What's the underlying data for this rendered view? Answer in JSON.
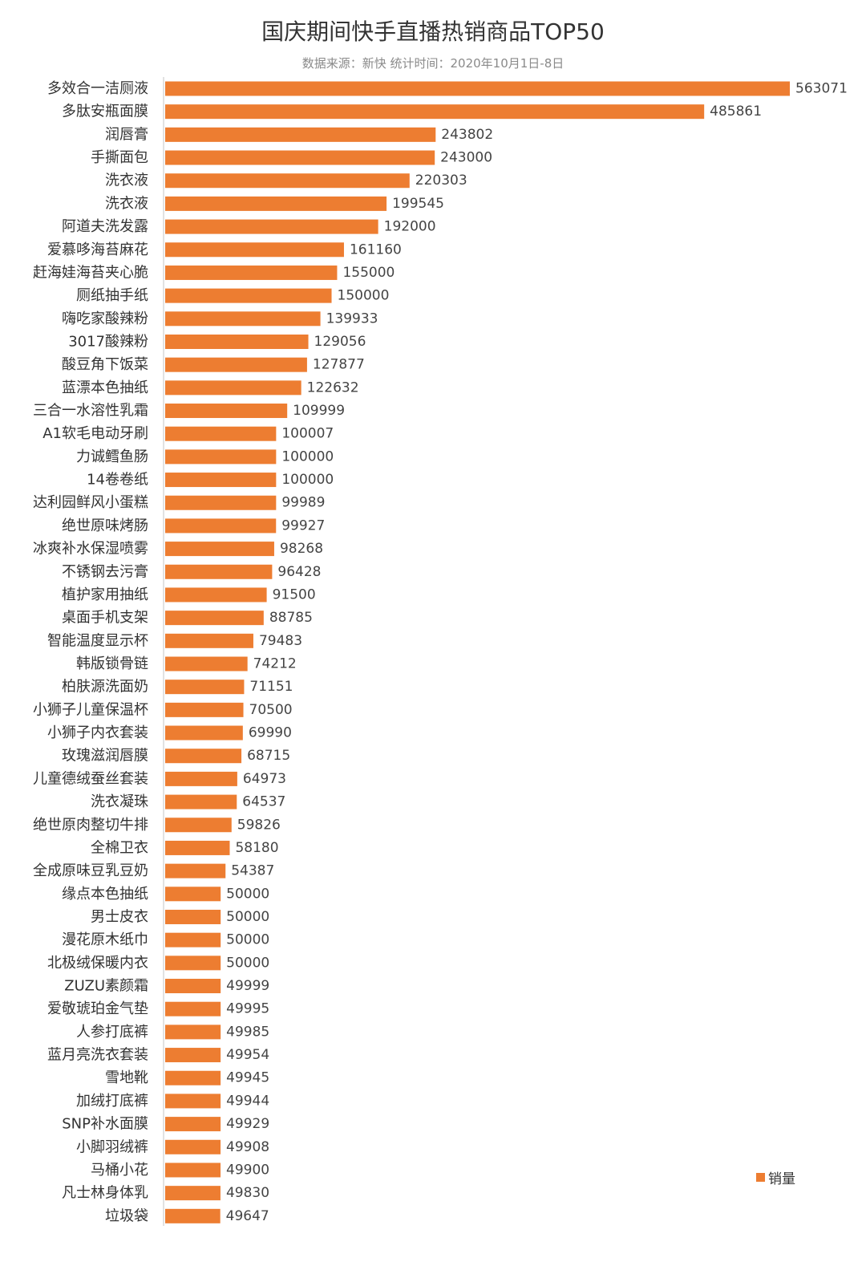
{
  "chart_data": {
    "type": "bar",
    "orientation": "horizontal",
    "title": "国庆期间快手直播热销商品TOP50",
    "subtitle": "数据来源：新快    统计时间：2020年10月1日-8日",
    "xlabel": "",
    "ylabel": "",
    "grid": false,
    "legend": "right-bottom",
    "xlim": [
      0,
      563071
    ],
    "colors": {
      "bar": "#ED7D31",
      "axis": "#d9d9d9"
    },
    "categories": [
      "多效合一洁厕液",
      "多肽安瓶面膜",
      "润唇膏",
      "手撕面包",
      "洗衣液",
      "洗衣液",
      "阿道夫洗发露",
      "爱慕哆海苔麻花",
      "赶海娃海苔夹心脆",
      "厕纸抽手纸",
      "嗨吃家酸辣粉",
      "3017酸辣粉",
      "酸豆角下饭菜",
      "蓝漂本色抽纸",
      "三合一水溶性乳霜",
      "A1软毛电动牙刷",
      "力诚鳕鱼肠",
      "14卷卷纸",
      "达利园鲜风小蛋糕",
      "绝世原味烤肠",
      "冰爽补水保湿喷雾",
      "不锈钢去污膏",
      "植护家用抽纸",
      "桌面手机支架",
      "智能温度显示杯",
      "韩版锁骨链",
      "柏肤源洗面奶",
      "小狮子儿童保温杯",
      "小狮子内衣套装",
      "玫瑰滋润唇膜",
      "儿童德绒蚕丝套装",
      "洗衣凝珠",
      "绝世原肉整切牛排",
      "全棉卫衣",
      "全成原味豆乳豆奶",
      "缘点本色抽纸",
      "男士皮衣",
      "漫花原木纸巾",
      "北极绒保暖内衣",
      "ZUZU素颜霜",
      "爱敬琥珀金气垫",
      "人参打底裤",
      "蓝月亮洗衣套装",
      "雪地靴",
      "加绒打底裤",
      "SNP补水面膜",
      "小脚羽绒裤",
      "马桶小花",
      "凡士林身体乳",
      "垃圾袋"
    ],
    "series": [
      {
        "name": "销量",
        "values": [
          563071,
          485861,
          243802,
          243000,
          220303,
          199545,
          192000,
          161160,
          155000,
          150000,
          139933,
          129056,
          127877,
          122632,
          109999,
          100007,
          100000,
          100000,
          99989,
          99927,
          98268,
          96428,
          91500,
          88785,
          79483,
          74212,
          71151,
          70500,
          69990,
          68715,
          64973,
          64537,
          59826,
          58180,
          54387,
          50000,
          50000,
          50000,
          50000,
          49999,
          49995,
          49985,
          49954,
          49945,
          49944,
          49929,
          49908,
          49900,
          49830,
          49647
        ]
      }
    ]
  }
}
